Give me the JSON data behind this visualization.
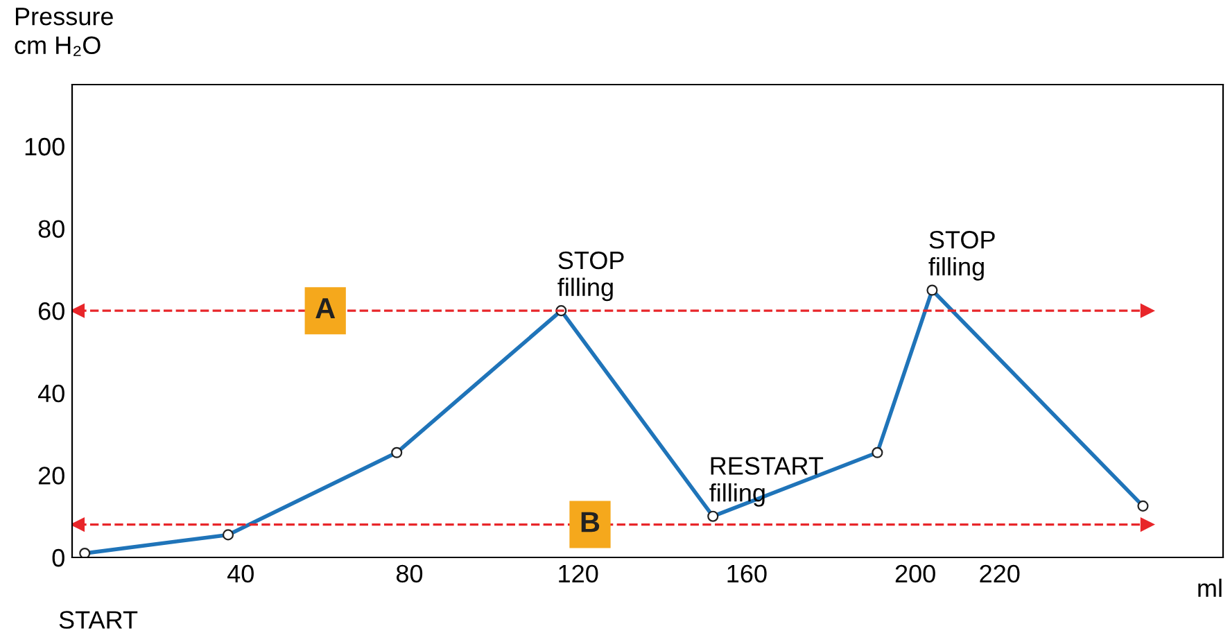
{
  "chart_data": {
    "type": "line",
    "ylabel": "Pressure\ncm H₂O",
    "xlabel": "ml",
    "x": [
      3,
      37,
      77,
      116,
      152,
      191,
      204,
      254
    ],
    "series": [
      {
        "color": "#1f74b9",
        "values": [
          1,
          5.5,
          25.5,
          60,
          10,
          25.5,
          65,
          12.5
        ]
      }
    ],
    "marker": "circle",
    "line_style": "solid",
    "grid": false,
    "legend": false,
    "xlim": [
      0,
      273
    ],
    "ylim": [
      0,
      115
    ],
    "xticks": [
      40,
      80,
      120,
      160,
      200,
      220
    ],
    "yticks": [
      0,
      20,
      40,
      60,
      80,
      100
    ],
    "ref_lines": [
      {
        "axis": "y",
        "value": 60,
        "label": "A",
        "color": "#e8262a",
        "line_style": "dashed"
      },
      {
        "axis": "y",
        "value": 8,
        "label": "B",
        "color": "#e8262a",
        "line_style": "dashed"
      }
    ],
    "annotations": [
      "START",
      {
        "text": "STOP\nfilling",
        "x": 116,
        "y": 60
      },
      {
        "text": "RESTART\nfilling",
        "x": 152,
        "y": 10
      },
      {
        "text": "STOP\nfilling",
        "x": 204,
        "y": 65
      }
    ]
  }
}
